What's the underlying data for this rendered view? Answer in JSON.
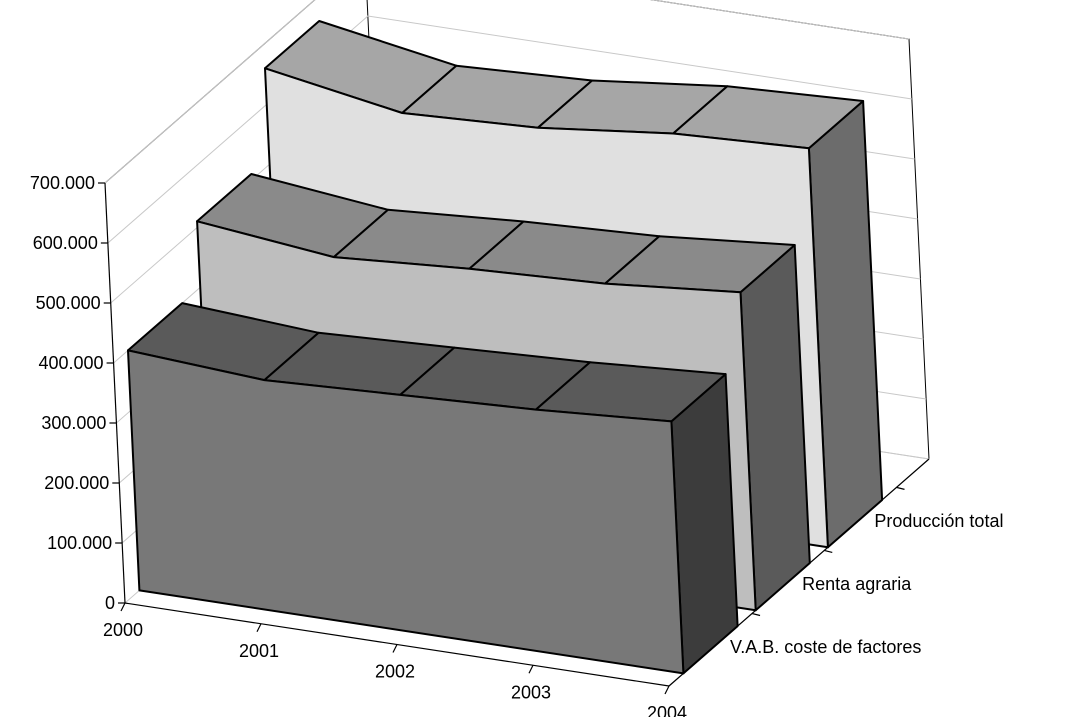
{
  "chart_data": {
    "type": "area",
    "title": "",
    "xlabel": "",
    "ylabel": "",
    "categories": [
      "2000",
      "2001",
      "2002",
      "2003",
      "2004"
    ],
    "ylim": [
      0,
      700000
    ],
    "yticks": [
      "0",
      "100.000",
      "200.000",
      "300.000",
      "400.000",
      "500.000",
      "600.000",
      "700.000"
    ],
    "grid": true,
    "legend": "none",
    "series": [
      {
        "name": "V.A.B. coste de factores",
        "values": [
          400000,
          385000,
          395000,
          405000,
          420000
        ],
        "colors": {
          "front": "#787878",
          "top": "#5a5a5a",
          "side": "#3c3c3c"
        }
      },
      {
        "name": "Renta agraria",
        "values": [
          510000,
          485000,
          500000,
          510000,
          530000
        ],
        "colors": {
          "front": "#bebebe",
          "top": "#8a8a8a",
          "side": "#5a5a5a"
        }
      },
      {
        "name": "Producción total",
        "values": [
          660000,
          620000,
          630000,
          655000,
          665000
        ],
        "colors": {
          "front": "#e0e0e0",
          "top": "#a6a6a6",
          "side": "#6c6c6c"
        }
      }
    ]
  }
}
